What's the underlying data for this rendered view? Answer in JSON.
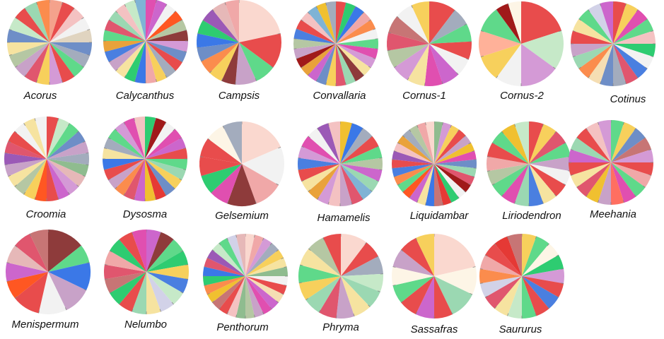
{
  "chart_data": {
    "type": "pie",
    "palette": [
      "#e84c4c",
      "#f0a8a8",
      "#fad8cf",
      "#f2f2f2",
      "#a3acbd",
      "#6e8ec7",
      "#4a7fe0",
      "#3b78e7",
      "#2ecc71",
      "#5fd98a",
      "#9bd8b2",
      "#c6e9c8",
      "#f6e3a0",
      "#f7d05c",
      "#f0c030",
      "#e9a23b",
      "#fb8c4d",
      "#ff5722",
      "#d84315",
      "#e0566e",
      "#e53935",
      "#a01a1a",
      "#8e3b3b",
      "#c77575",
      "#cc66cc",
      "#e04fb0",
      "#d49ad6",
      "#b080d0",
      "#9b59b6",
      "#c8a2c8",
      "#8fbc8f",
      "#b5c7a3",
      "#f5deb3",
      "#fdf5e6",
      "#e6b8b8",
      "#d2d2e8",
      "#ff6f61",
      "#ffb199",
      "#f4c2c2",
      "#7fb3d5"
    ],
    "charts": [
      {
        "name": "Acorus",
        "values": [
          2,
          2,
          2,
          2,
          2,
          2,
          2,
          2,
          2,
          2,
          2,
          2,
          2,
          2,
          2,
          2,
          2,
          2,
          2,
          2
        ],
        "colors": [
          "#f4a28c",
          "#e84c4c",
          "#f4c2c2",
          "#f2f2f2",
          "#e0d4c0",
          "#6e8ec7",
          "#a3acbd",
          "#5fd98a",
          "#e84c4c",
          "#d49ad6",
          "#f7d05c",
          "#e0566e",
          "#c8a2c8",
          "#b5c7a3",
          "#f6e3a0",
          "#6e8ec7",
          "#c6e9c8",
          "#e84c4c",
          "#9bd8b2",
          "#fb8c4d"
        ]
      },
      {
        "name": "Calycanthus",
        "values": [
          1,
          1,
          1,
          1,
          1,
          1,
          1,
          1,
          1,
          1,
          1,
          1,
          1,
          1,
          1,
          1,
          1,
          1,
          1,
          1,
          1,
          1,
          1,
          1
        ],
        "colors": [
          "#e04fb0",
          "#cc66cc",
          "#f2f2f2",
          "#ff5722",
          "#b5c7a3",
          "#8e3b3b",
          "#d49ad6",
          "#6e8ec7",
          "#e84c4c",
          "#a3acbd",
          "#f7d05c",
          "#f0a8a8",
          "#3b78e7",
          "#2ecc71",
          "#f6e3a0",
          "#c8a2c8",
          "#4a7fe0",
          "#e9a23b",
          "#5fd98a",
          "#e0566e",
          "#9bd8b2",
          "#f4c2c2",
          "#c6e9c8",
          "#7fb3d5"
        ]
      },
      {
        "name": "Campsis",
        "values": [
          8,
          5,
          3,
          3,
          2,
          2,
          2,
          2,
          2,
          2,
          2,
          2,
          2
        ],
        "colors": [
          "#fad8cf",
          "#e84c4c",
          "#5fd98a",
          "#c8a2c8",
          "#8e3b3b",
          "#f7d05c",
          "#fb8c4d",
          "#6e8ec7",
          "#3b78e7",
          "#2ecc71",
          "#9b59b6",
          "#e6b8b8",
          "#f0a8a8"
        ]
      },
      {
        "name": "Convallaria",
        "values": [
          1,
          1,
          1,
          1,
          1,
          1,
          1,
          1,
          1,
          1,
          1,
          1,
          1,
          1,
          1,
          1,
          1,
          1,
          1,
          1,
          1,
          1,
          1,
          1,
          1,
          1
        ],
        "colors": [
          "#e84c4c",
          "#2ecc71",
          "#3b78e7",
          "#f0a8a8",
          "#fb8c4d",
          "#f2f2f2",
          "#5fd98a",
          "#e04fb0",
          "#d49ad6",
          "#f6e3a0",
          "#8e3b3b",
          "#9bd8b2",
          "#e0566e",
          "#f7d05c",
          "#6e8ec7",
          "#cc66cc",
          "#e9a23b",
          "#a01a1a",
          "#c8a2c8",
          "#b5c7a3",
          "#4a7fe0",
          "#e84c4c",
          "#f4c2c2",
          "#7fb3d5",
          "#f0c030",
          "#a3acbd"
        ]
      },
      {
        "name": "Cornus-1",
        "values": [
          3,
          2,
          2,
          2,
          2,
          2,
          2,
          2,
          2,
          2,
          2,
          2,
          2,
          2
        ],
        "colors": [
          "#e84c4c",
          "#a3acbd",
          "#5fd98a",
          "#e84c4c",
          "#f2f2f2",
          "#cc66cc",
          "#e04fb0",
          "#f6e3a0",
          "#d49ad6",
          "#b5c7a3",
          "#e0566e",
          "#c77575",
          "#f2f2f2",
          "#f7d05c"
        ]
      },
      {
        "name": "Cornus-2",
        "values": [
          4,
          3,
          3,
          2,
          2,
          2,
          2,
          1,
          1
        ],
        "colors": [
          "#e84c4c",
          "#c6e9c8",
          "#d49ad6",
          "#f2f2f2",
          "#f7d05c",
          "#ffb199",
          "#5fd98a",
          "#a01a1a",
          "#fdf5e6"
        ]
      },
      {
        "name": "Cotinus",
        "values": [
          1,
          1,
          1,
          1,
          1,
          1,
          1,
          1,
          1,
          1,
          1,
          1,
          1,
          1,
          1,
          1,
          1,
          1,
          1,
          1
        ],
        "colors": [
          "#e84c4c",
          "#f7d05c",
          "#e04fb0",
          "#5fd98a",
          "#f4c2c2",
          "#2ecc71",
          "#f2f2f2",
          "#4a7fe0",
          "#e0566e",
          "#a3acbd",
          "#6e8ec7",
          "#f5deb3",
          "#fb8c4d",
          "#9bd8b2",
          "#c8a2c8",
          "#e84c4c",
          "#f6e3a0",
          "#5fd98a",
          "#d2d2e8",
          "#cc66cc"
        ]
      },
      {
        "name": "Croomia",
        "values": [
          1,
          1,
          1,
          1,
          1,
          1,
          1,
          1,
          1,
          1,
          1,
          1,
          1,
          1,
          1,
          1,
          1,
          1,
          1,
          1,
          1,
          1
        ],
        "colors": [
          "#e84c4c",
          "#c6e9c8",
          "#5fd98a",
          "#6e8ec7",
          "#c8a2c8",
          "#a3acbd",
          "#8fbc8f",
          "#e6b8b8",
          "#d49ad6",
          "#cc66cc",
          "#e84c4c",
          "#ff5722",
          "#f7d05c",
          "#b5c7a3",
          "#f6e3a0",
          "#c8a2c8",
          "#9b59b6",
          "#e0566e",
          "#e84c4c",
          "#f2f2f2",
          "#f6e3a0",
          "#f2f2f2"
        ]
      },
      {
        "name": "Dysosma",
        "values": [
          1,
          1,
          1,
          1,
          1,
          1,
          1,
          1,
          1,
          1,
          1,
          1,
          1,
          1,
          1,
          1,
          1,
          1,
          1,
          1,
          1,
          1,
          1,
          1
        ],
        "colors": [
          "#2ecc71",
          "#a01a1a",
          "#f2f2f2",
          "#e04fb0",
          "#cc66cc",
          "#e84c4c",
          "#5fd98a",
          "#9bd8b2",
          "#f7d05c",
          "#6e8ec7",
          "#e53935",
          "#f0c030",
          "#cc66cc",
          "#e0566e",
          "#fb8c4d",
          "#c8a2c8",
          "#e84c4c",
          "#3b78e7",
          "#f6e3a0",
          "#a3acbd",
          "#5fd98a",
          "#d49ad6",
          "#e04fb0",
          "#f4c2c2"
        ]
      },
      {
        "name": "Gelsemium",
        "values": [
          5,
          4,
          3,
          3,
          2,
          2,
          2,
          2,
          2,
          2
        ],
        "colors": [
          "#fad8cf",
          "#f2f2f2",
          "#f0a8a8",
          "#8e3b3b",
          "#e04fb0",
          "#2ecc71",
          "#e84c4c",
          "#e84c4c",
          "#fdf5e6",
          "#a3acbd"
        ]
      },
      {
        "name": "Hamamelis",
        "values": [
          1,
          1,
          1,
          1,
          1,
          1,
          1,
          1,
          1,
          1,
          1,
          1,
          1,
          1,
          1,
          1,
          1,
          1,
          1,
          1,
          1,
          1
        ],
        "colors": [
          "#f0c030",
          "#3b78e7",
          "#a3acbd",
          "#e84c4c",
          "#5fd98a",
          "#b5c7a3",
          "#cc66cc",
          "#9bd8b2",
          "#7fb3d5",
          "#e0566e",
          "#c8a2c8",
          "#f4c2c2",
          "#d49ad6",
          "#e9a23b",
          "#f6e3a0",
          "#e84c4c",
          "#4a7fe0",
          "#d49ad6",
          "#e04fb0",
          "#f2f2f2",
          "#9b59b6",
          "#f4c2c2"
        ]
      },
      {
        "name": "Liquidambar",
        "values": [
          1,
          1,
          1,
          1,
          1,
          1,
          1,
          1,
          1,
          1,
          1,
          1,
          1,
          1,
          1,
          1,
          1,
          1,
          1,
          1,
          1,
          1,
          1,
          1,
          1,
          1,
          1,
          1,
          1,
          1
        ],
        "colors": [
          "#8fbc8f",
          "#d49ad6",
          "#f7d05c",
          "#e84c4c",
          "#c8a2c8",
          "#f0c030",
          "#e04fb0",
          "#6e8ec7",
          "#9bd8b2",
          "#e0566e",
          "#a01a1a",
          "#f2f2f2",
          "#2ecc71",
          "#e53935",
          "#c77575",
          "#3b78e7",
          "#f6e3a0",
          "#cc66cc",
          "#ff5722",
          "#5fd98a",
          "#fb8c4d",
          "#4a7fe0",
          "#e84c4c",
          "#9b59b6",
          "#f4c2c2",
          "#e9a23b",
          "#a3acbd",
          "#b5c7a3",
          "#f0a8a8",
          "#fad8cf"
        ]
      },
      {
        "name": "Liriodendron",
        "values": [
          1,
          1,
          1,
          1,
          1,
          1,
          1,
          1,
          1,
          1,
          1,
          1,
          1,
          1,
          1,
          1,
          1,
          1
        ],
        "colors": [
          "#e84c4c",
          "#f7d05c",
          "#e0566e",
          "#5fd98a",
          "#c8a2c8",
          "#f2f2f2",
          "#e84c4c",
          "#f6e3a0",
          "#4a7fe0",
          "#9bd8b2",
          "#e04fb0",
          "#5fd98a",
          "#b5c7a3",
          "#f0a8a8",
          "#e84c4c",
          "#5fd98a",
          "#f0c030",
          "#c6e9c8"
        ]
      },
      {
        "name": "Meehania",
        "values": [
          1,
          1,
          1,
          1,
          1,
          1,
          1,
          1,
          1,
          1,
          1,
          1,
          1,
          1,
          1,
          1,
          1,
          1,
          1,
          1
        ],
        "colors": [
          "#5fd98a",
          "#f7d05c",
          "#6e8ec7",
          "#c77575",
          "#d49ad6",
          "#e84c4c",
          "#f0a8a8",
          "#5fd98a",
          "#e04fb0",
          "#ff6f61",
          "#c8a2c8",
          "#f0c030",
          "#e0566e",
          "#f6e3a0",
          "#e84c4c",
          "#cc66cc",
          "#9bd8b2",
          "#e84c4c",
          "#f4c2c2",
          "#d49ad6"
        ]
      },
      {
        "name": "Menispermum",
        "values": [
          4,
          2,
          3,
          3,
          3,
          3,
          2,
          2,
          2,
          2,
          2
        ],
        "colors": [
          "#8e3b3b",
          "#5fd98a",
          "#3b78e7",
          "#c8a2c8",
          "#f2f2f2",
          "#e84c4c",
          "#ff5722",
          "#cc66cc",
          "#e6b8b8",
          "#e0566e",
          "#c77575"
        ]
      },
      {
        "name": "Nelumbo",
        "values": [
          1,
          1,
          1,
          1,
          1,
          1,
          1,
          1,
          1,
          1,
          1,
          1,
          1,
          1,
          1,
          1,
          1,
          1
        ],
        "colors": [
          "#cc66cc",
          "#8e3b3b",
          "#5fd98a",
          "#2ecc71",
          "#f7d05c",
          "#4a7fe0",
          "#c6e9c8",
          "#d2d2e8",
          "#f6e3a0",
          "#9bd8b2",
          "#e84c4c",
          "#2ecc71",
          "#c77575",
          "#e0566e",
          "#f0a8a8",
          "#2ecc71",
          "#e84c4c",
          "#e04fb0"
        ]
      },
      {
        "name": "Penthorum",
        "values": [
          1,
          1,
          1,
          1,
          1,
          1,
          1,
          1,
          1,
          1,
          1,
          1,
          1,
          1,
          1,
          1,
          1,
          1,
          1,
          1,
          1,
          1,
          1,
          1,
          1,
          1,
          1,
          1
        ],
        "colors": [
          "#fad8cf",
          "#f0a8a8",
          "#d49ad6",
          "#a3acbd",
          "#f7d05c",
          "#f6e3a0",
          "#8fbc8f",
          "#f2f2f2",
          "#e84c4c",
          "#f5deb3",
          "#cc66cc",
          "#e04fb0",
          "#c8a2c8",
          "#b5c7a3",
          "#8fbc8f",
          "#f4c2c2",
          "#e84c4c",
          "#c77575",
          "#f0c030",
          "#fb8c4d",
          "#2ecc71",
          "#3b78e7",
          "#e0566e",
          "#9b59b6",
          "#c6e9c8",
          "#5fd98a",
          "#d2d2e8",
          "#e6b8b8"
        ]
      },
      {
        "name": "Phryma",
        "values": [
          3,
          2,
          2,
          2,
          2,
          2,
          2,
          2,
          2,
          2,
          2,
          2,
          2,
          2
        ],
        "colors": [
          "#fad8cf",
          "#e84c4c",
          "#a3acbd",
          "#c6e9c8",
          "#9bd8b2",
          "#f6e3a0",
          "#c8a2c8",
          "#e0566e",
          "#9bd8b2",
          "#f7d05c",
          "#5fd98a",
          "#f6e3a0",
          "#b5c7a3",
          "#e84c4c"
        ]
      },
      {
        "name": "Sassafras",
        "values": [
          6,
          3,
          3,
          2,
          2,
          2,
          2,
          2,
          2,
          2,
          2
        ],
        "colors": [
          "#fad8cf",
          "#fdf5e6",
          "#9bd8b2",
          "#e84c4c",
          "#cc66cc",
          "#e84c4c",
          "#5fd98a",
          "#fdf5e6",
          "#c8a2c8",
          "#e84c4c",
          "#f7d05c"
        ]
      },
      {
        "name": "Saururus",
        "values": [
          1,
          1,
          1,
          1,
          1,
          1,
          1,
          1,
          1,
          1,
          1,
          1,
          1,
          1,
          1,
          1,
          1,
          1
        ],
        "colors": [
          "#f7d05c",
          "#5fd98a",
          "#fdf5e6",
          "#2ecc71",
          "#d49ad6",
          "#e84c4c",
          "#4a7fe0",
          "#e84c4c",
          "#5fd98a",
          "#c6e9c8",
          "#f6e3a0",
          "#e0566e",
          "#d2d2e8",
          "#fb8c4d",
          "#f0a8a8",
          "#e84c4c",
          "#e53935",
          "#c77575"
        ]
      }
    ]
  }
}
